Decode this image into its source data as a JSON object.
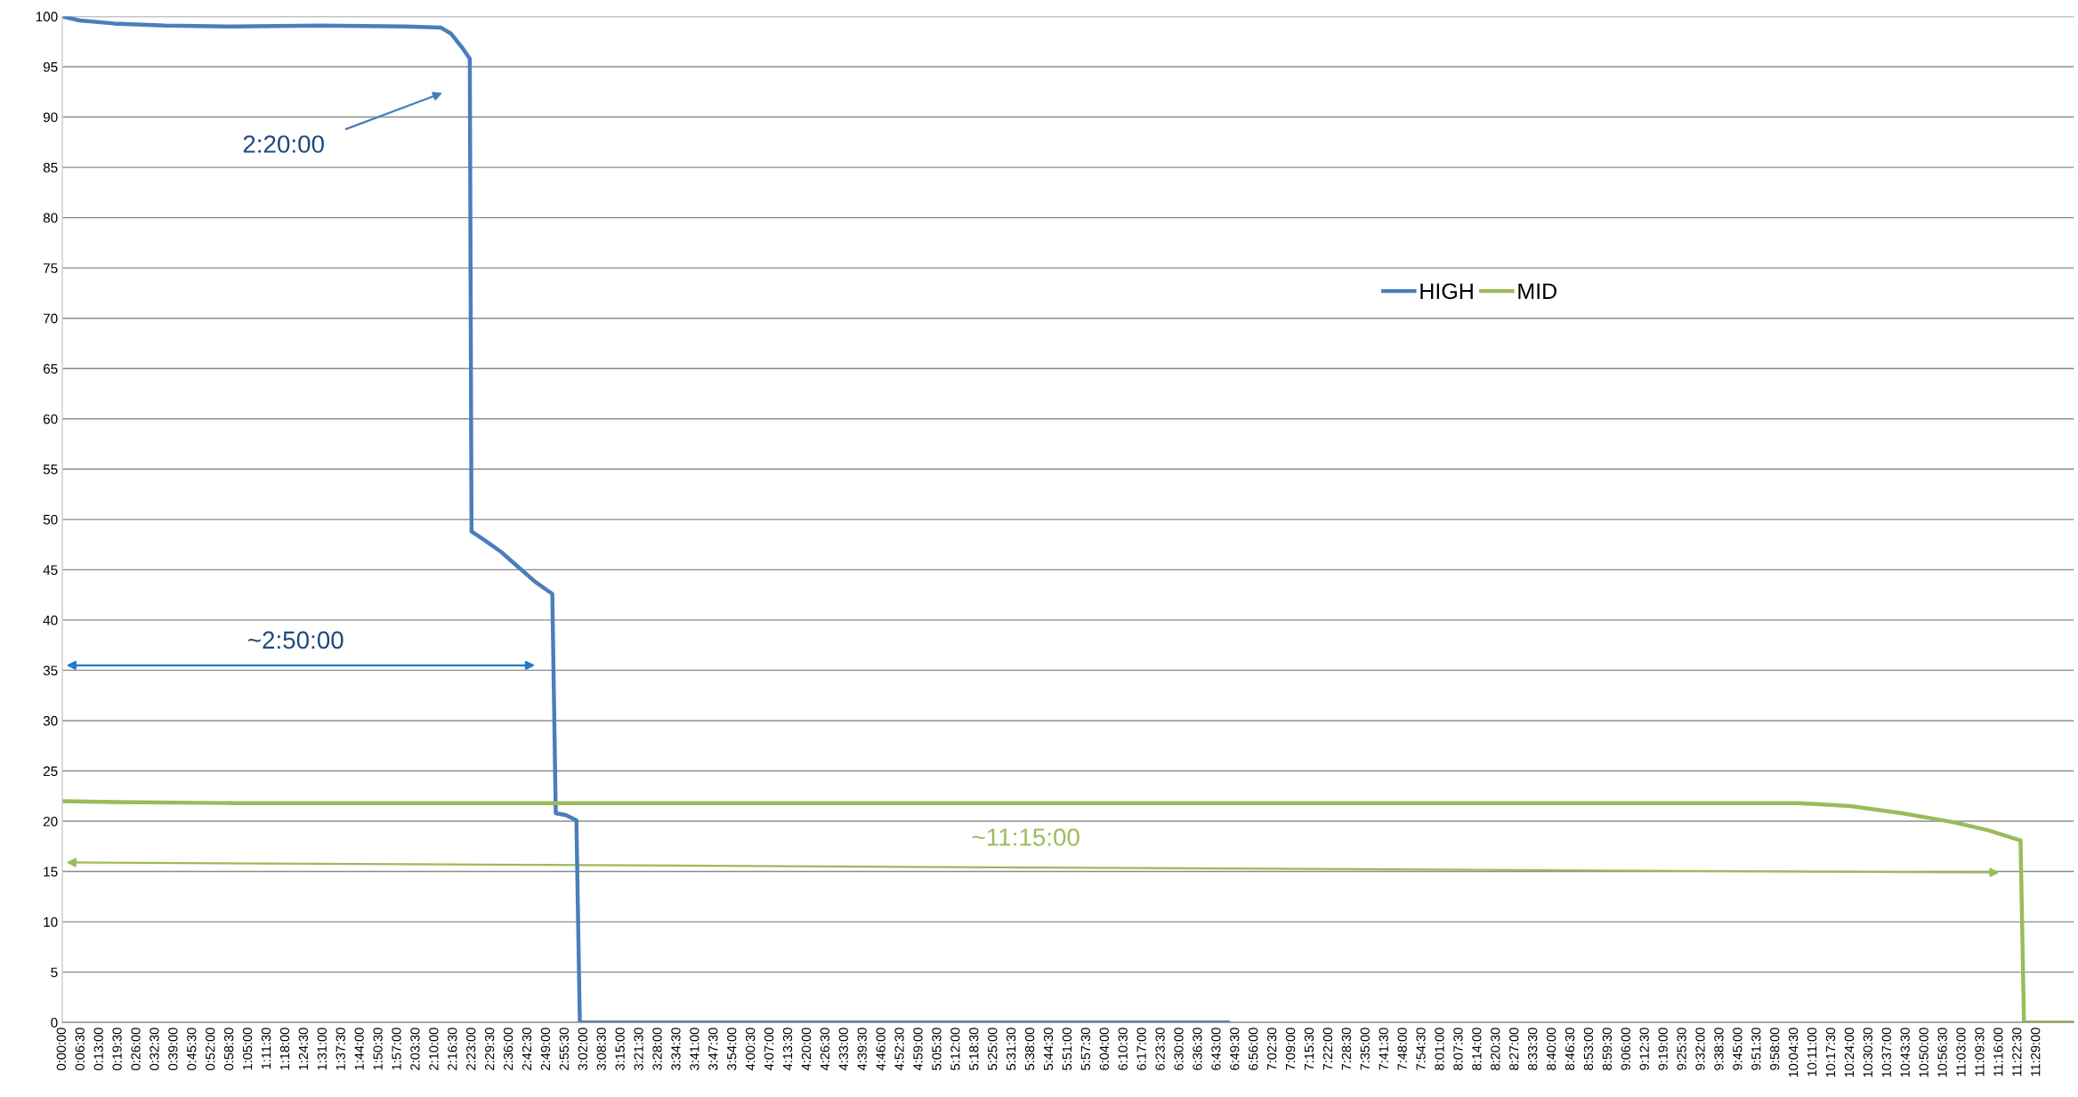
{
  "chart_data": {
    "type": "line",
    "series": [
      {
        "name": "HIGH",
        "color": "#4a7ebb",
        "x": [
          0,
          0.1,
          0.3,
          0.6,
          1.0,
          1.5,
          2.0,
          2.2,
          2.26,
          2.33,
          2.37,
          2.38,
          2.45,
          2.55,
          2.65,
          2.75,
          2.85,
          2.87,
          2.93,
          2.99,
          3.01,
          6.78
        ],
        "values": [
          100,
          99.6,
          99.3,
          99.1,
          99.0,
          99.1,
          99.0,
          98.9,
          98.3,
          96.8,
          95.8,
          48.8,
          48.0,
          46.8,
          45.3,
          43.8,
          42.6,
          20.8,
          20.6,
          20.1,
          0,
          0
        ]
      },
      {
        "name": "MID",
        "color": "#9bbb59",
        "x": [
          0,
          0.3,
          1.0,
          5.0,
          10.1,
          10.4,
          10.7,
          11.0,
          11.2,
          11.39,
          11.41,
          11.7
        ],
        "values": [
          22.0,
          21.9,
          21.8,
          21.8,
          21.8,
          21.5,
          20.8,
          19.9,
          19.1,
          18.1,
          0,
          0
        ]
      }
    ],
    "annotations": [
      "2:20:00",
      "~2:50:00",
      "~11:15:00"
    ],
    "xlim": [
      0,
      11.7
    ],
    "ylim": [
      0,
      100
    ],
    "yticks": [
      0,
      5,
      10,
      15,
      20,
      25,
      30,
      35,
      40,
      45,
      50,
      55,
      60,
      65,
      70,
      75,
      80,
      85,
      90,
      95,
      100
    ],
    "xticks": [
      {
        "value": 0,
        "label": "0:00:00"
      },
      {
        "value": 0.1083,
        "label": "0:06:30"
      },
      {
        "value": 0.2167,
        "label": "0:13:00"
      },
      {
        "value": 0.325,
        "label": "0:19:30"
      },
      {
        "value": 0.4333,
        "label": "0:26:00"
      },
      {
        "value": 0.5417,
        "label": "0:32:30"
      },
      {
        "value": 0.65,
        "label": "0:39:00"
      },
      {
        "value": 0.7583,
        "label": "0:45:30"
      },
      {
        "value": 0.8667,
        "label": "0:52:00"
      },
      {
        "value": 0.975,
        "label": "0:58:30"
      },
      {
        "value": 1.0833,
        "label": "1:05:00"
      },
      {
        "value": 1.1917,
        "label": "1:11:30"
      },
      {
        "value": 1.3,
        "label": "1:18:00"
      },
      {
        "value": 1.4083,
        "label": "1:24:30"
      },
      {
        "value": 1.5167,
        "label": "1:31:00"
      },
      {
        "value": 1.625,
        "label": "1:37:30"
      },
      {
        "value": 1.7333,
        "label": "1:44:00"
      },
      {
        "value": 1.8417,
        "label": "1:50:30"
      },
      {
        "value": 1.95,
        "label": "1:57:00"
      },
      {
        "value": 2.0583,
        "label": "2:03:30"
      },
      {
        "value": 2.1667,
        "label": "2:10:00"
      },
      {
        "value": 2.275,
        "label": "2:16:30"
      },
      {
        "value": 2.3833,
        "label": "2:23:00"
      },
      {
        "value": 2.4917,
        "label": "2:29:30"
      },
      {
        "value": 2.6,
        "label": "2:36:00"
      },
      {
        "value": 2.7083,
        "label": "2:42:30"
      },
      {
        "value": 2.8167,
        "label": "2:49:00"
      },
      {
        "value": 2.925,
        "label": "2:55:30"
      },
      {
        "value": 3.0333,
        "label": "3:02:00"
      },
      {
        "value": 3.1417,
        "label": "3:08:30"
      },
      {
        "value": 3.25,
        "label": "3:15:00"
      },
      {
        "value": 3.3583,
        "label": "3:21:30"
      },
      {
        "value": 3.4667,
        "label": "3:28:00"
      },
      {
        "value": 3.575,
        "label": "3:34:30"
      },
      {
        "value": 3.6833,
        "label": "3:41:00"
      },
      {
        "value": 3.7917,
        "label": "3:47:30"
      },
      {
        "value": 3.9,
        "label": "3:54:00"
      },
      {
        "value": 4.0083,
        "label": "4:00:30"
      },
      {
        "value": 4.1167,
        "label": "4:07:00"
      },
      {
        "value": 4.225,
        "label": "4:13:30"
      },
      {
        "value": 4.3333,
        "label": "4:20:00"
      },
      {
        "value": 4.4417,
        "label": "4:26:30"
      },
      {
        "value": 4.55,
        "label": "4:33:00"
      },
      {
        "value": 4.6583,
        "label": "4:39:30"
      },
      {
        "value": 4.7667,
        "label": "4:46:00"
      },
      {
        "value": 4.875,
        "label": "4:52:30"
      },
      {
        "value": 4.9833,
        "label": "4:59:00"
      },
      {
        "value": 5.0917,
        "label": "5:05:30"
      },
      {
        "value": 5.2,
        "label": "5:12:00"
      },
      {
        "value": 5.3083,
        "label": "5:18:30"
      },
      {
        "value": 5.4167,
        "label": "5:25:00"
      },
      {
        "value": 5.525,
        "label": "5:31:30"
      },
      {
        "value": 5.6333,
        "label": "5:38:00"
      },
      {
        "value": 5.7417,
        "label": "5:44:30"
      },
      {
        "value": 5.85,
        "label": "5:51:00"
      },
      {
        "value": 5.9583,
        "label": "5:57:30"
      },
      {
        "value": 6.0667,
        "label": "6:04:00"
      },
      {
        "value": 6.175,
        "label": "6:10:30"
      },
      {
        "value": 6.2833,
        "label": "6:17:00"
      },
      {
        "value": 6.3917,
        "label": "6:23:30"
      },
      {
        "value": 6.5,
        "label": "6:30:00"
      },
      {
        "value": 6.6083,
        "label": "6:36:30"
      },
      {
        "value": 6.7167,
        "label": "6:43:00"
      },
      {
        "value": 6.825,
        "label": "6:49:30"
      },
      {
        "value": 6.9333,
        "label": "6:56:00"
      },
      {
        "value": 7.0417,
        "label": "7:02:30"
      },
      {
        "value": 7.15,
        "label": "7:09:00"
      },
      {
        "value": 7.2583,
        "label": "7:15:30"
      },
      {
        "value": 7.3667,
        "label": "7:22:00"
      },
      {
        "value": 7.475,
        "label": "7:28:30"
      },
      {
        "value": 7.5833,
        "label": "7:35:00"
      },
      {
        "value": 7.6917,
        "label": "7:41:30"
      },
      {
        "value": 7.8,
        "label": "7:48:00"
      },
      {
        "value": 7.9083,
        "label": "7:54:30"
      },
      {
        "value": 8.0167,
        "label": "8:01:00"
      },
      {
        "value": 8.125,
        "label": "8:07:30"
      },
      {
        "value": 8.2333,
        "label": "8:14:00"
      },
      {
        "value": 8.3417,
        "label": "8:20:30"
      },
      {
        "value": 8.45,
        "label": "8:27:00"
      },
      {
        "value": 8.5583,
        "label": "8:33:30"
      },
      {
        "value": 8.6667,
        "label": "8:40:00"
      },
      {
        "value": 8.775,
        "label": "8:46:30"
      },
      {
        "value": 8.8833,
        "label": "8:53:00"
      },
      {
        "value": 8.9917,
        "label": "8:59:30"
      },
      {
        "value": 9.1,
        "label": "9:06:00"
      },
      {
        "value": 9.2083,
        "label": "9:12:30"
      },
      {
        "value": 9.3167,
        "label": "9:19:00"
      },
      {
        "value": 9.425,
        "label": "9:25:30"
      },
      {
        "value": 9.5333,
        "label": "9:32:00"
      },
      {
        "value": 9.6417,
        "label": "9:38:30"
      },
      {
        "value": 9.75,
        "label": "9:45:00"
      },
      {
        "value": 9.8583,
        "label": "9:51:30"
      },
      {
        "value": 9.9667,
        "label": "9:58:00"
      },
      {
        "value": 10.075,
        "label": "10:04:30"
      },
      {
        "value": 10.1833,
        "label": "10:11:00"
      },
      {
        "value": 10.2917,
        "label": "10:17:30"
      },
      {
        "value": 10.4,
        "label": "10:24:00"
      },
      {
        "value": 10.5083,
        "label": "10:30:30"
      },
      {
        "value": 10.6167,
        "label": "10:37:00"
      },
      {
        "value": 10.725,
        "label": "10:43:30"
      },
      {
        "value": 10.8333,
        "label": "10:50:00"
      },
      {
        "value": 10.9417,
        "label": "10:56:30"
      },
      {
        "value": 11.05,
        "label": "11:03:00"
      },
      {
        "value": 11.1583,
        "label": "11:09:30"
      },
      {
        "value": 11.2667,
        "label": "11:16:00"
      },
      {
        "value": 11.375,
        "label": "11:22:30"
      },
      {
        "value": 11.4833,
        "label": "11:29:00"
      }
    ],
    "grid": "y",
    "legend": "top right",
    "marker": "none",
    "line_style": "solid"
  }
}
